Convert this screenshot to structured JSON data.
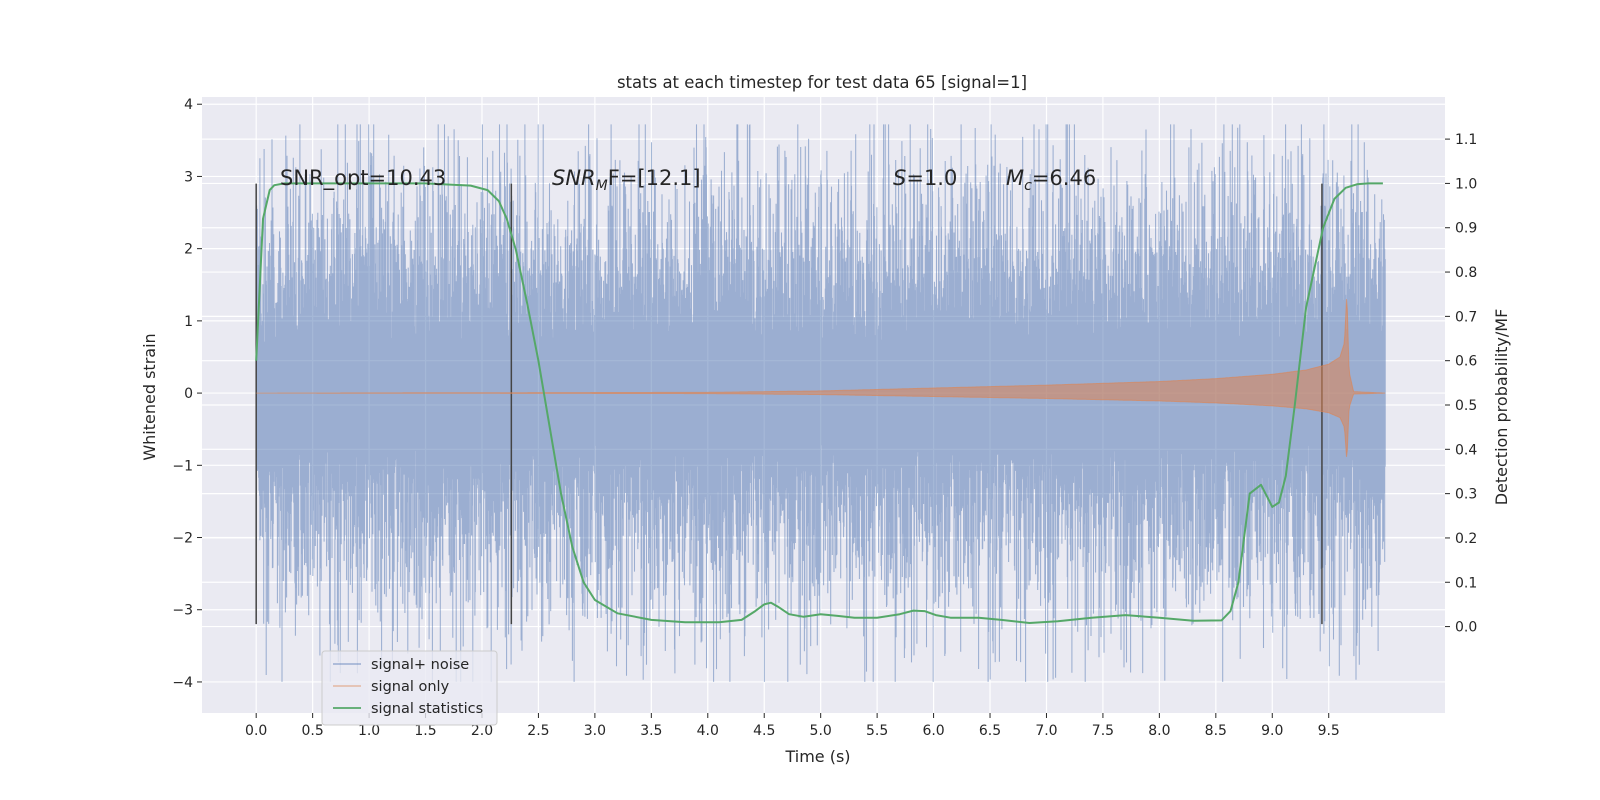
{
  "chart_data": {
    "type": "line",
    "title": "stats at each timestep for test data 65 [signal=1]",
    "xlabel": "Time (s)",
    "ylabel": "Whitened strain",
    "y2label": "Detection probability/MF",
    "xlim": [
      -0.48,
      10.53
    ],
    "ylim": [
      -4.43,
      4.1
    ],
    "y2lim": [
      -0.195,
      1.195
    ],
    "xticks": [
      0.0,
      0.5,
      1.0,
      1.5,
      2.0,
      2.5,
      3.0,
      3.5,
      4.0,
      4.5,
      5.0,
      5.5,
      6.0,
      6.5,
      7.0,
      7.5,
      8.0,
      8.5,
      9.0,
      9.5
    ],
    "xtick_labels": [
      "0.0",
      "0.5",
      "1.0",
      "1.5",
      "2.0",
      "2.5",
      "3.0",
      "3.5",
      "4.0",
      "4.5",
      "5.0",
      "5.5",
      "6.0",
      "6.5",
      "7.0",
      "7.5",
      "8.0",
      "8.5",
      "9.0",
      "9.5"
    ],
    "yticks": [
      -4,
      -3,
      -2,
      -1,
      0,
      1,
      2,
      3,
      4
    ],
    "ytick_labels": [
      "−4",
      "−3",
      "−2",
      "−1",
      "0",
      "1",
      "2",
      "3",
      "4"
    ],
    "y2ticks": [
      0.0,
      0.1,
      0.2,
      0.3,
      0.4,
      0.5,
      0.6,
      0.7,
      0.8,
      0.9,
      1.0,
      1.1
    ],
    "y2tick_labels": [
      "0.0",
      "0.1",
      "0.2",
      "0.3",
      "0.4",
      "0.5",
      "0.6",
      "0.7",
      "0.8",
      "0.9",
      "1.0",
      "1.1"
    ],
    "grid": true,
    "legend_position": "lower-left",
    "annotations": {
      "snr_opt": "SNR_opt=10.43",
      "snr_mf_italic": "SNR",
      "snr_mf_sub": "M",
      "snr_mf_rest": "F=[12.1]",
      "s_italic": "S",
      "s_rest": "=1.0",
      "mc_italic": "M",
      "mc_sub": "c",
      "mc_rest": "=6.46"
    },
    "vlines": [
      0.0,
      2.26,
      9.44
    ],
    "vline_range": [
      -3.2,
      2.9
    ],
    "series": [
      {
        "name": "signal+ noise",
        "color": "#4c72b0",
        "kind": "noise",
        "x_range": [
          0.0,
          10.0
        ],
        "typical_amplitude": 1.35,
        "max_abs": 4.0
      },
      {
        "name": "signal only",
        "color": "#dd8452",
        "kind": "chirp",
        "envelope": {
          "x": [
            0.0,
            2.0,
            4.0,
            5.0,
            6.0,
            7.0,
            8.0,
            8.5,
            9.0,
            9.3,
            9.5,
            9.6,
            9.64,
            9.66,
            9.68,
            9.72,
            10.0
          ],
          "y": [
            0.0,
            0.005,
            0.01,
            0.03,
            0.07,
            0.11,
            0.16,
            0.2,
            0.26,
            0.32,
            0.4,
            0.5,
            0.7,
            1.4,
            0.3,
            0.02,
            0.0
          ]
        }
      },
      {
        "name": "signal statistics",
        "color": "#55a868",
        "kind": "line",
        "axis": "right",
        "x": [
          0.0,
          0.06,
          0.12,
          0.16,
          0.25,
          0.5,
          1.0,
          1.5,
          1.9,
          2.05,
          2.15,
          2.22,
          2.3,
          2.4,
          2.5,
          2.6,
          2.7,
          2.8,
          2.9,
          3.0,
          3.2,
          3.5,
          3.8,
          4.1,
          4.3,
          4.42,
          4.5,
          4.56,
          4.62,
          4.72,
          4.85,
          5.0,
          5.15,
          5.3,
          5.5,
          5.7,
          5.82,
          5.92,
          6.02,
          6.15,
          6.4,
          6.6,
          6.85,
          7.1,
          7.4,
          7.7,
          8.0,
          8.3,
          8.55,
          8.63,
          8.7,
          8.8,
          8.9,
          9.0,
          9.06,
          9.12,
          9.2,
          9.3,
          9.45,
          9.55,
          9.65,
          9.75,
          9.85,
          9.98
        ],
        "y": [
          0.6,
          0.92,
          0.985,
          0.996,
          1.0,
          1.0,
          1.0,
          1.0,
          0.995,
          0.985,
          0.96,
          0.92,
          0.85,
          0.73,
          0.6,
          0.45,
          0.3,
          0.18,
          0.1,
          0.06,
          0.03,
          0.015,
          0.01,
          0.01,
          0.015,
          0.035,
          0.05,
          0.054,
          0.045,
          0.028,
          0.022,
          0.028,
          0.024,
          0.02,
          0.02,
          0.028,
          0.036,
          0.035,
          0.026,
          0.02,
          0.02,
          0.015,
          0.008,
          0.012,
          0.02,
          0.026,
          0.02,
          0.013,
          0.014,
          0.035,
          0.1,
          0.3,
          0.32,
          0.27,
          0.28,
          0.34,
          0.5,
          0.72,
          0.9,
          0.965,
          0.99,
          0.998,
          1.0,
          1.0
        ]
      }
    ]
  }
}
